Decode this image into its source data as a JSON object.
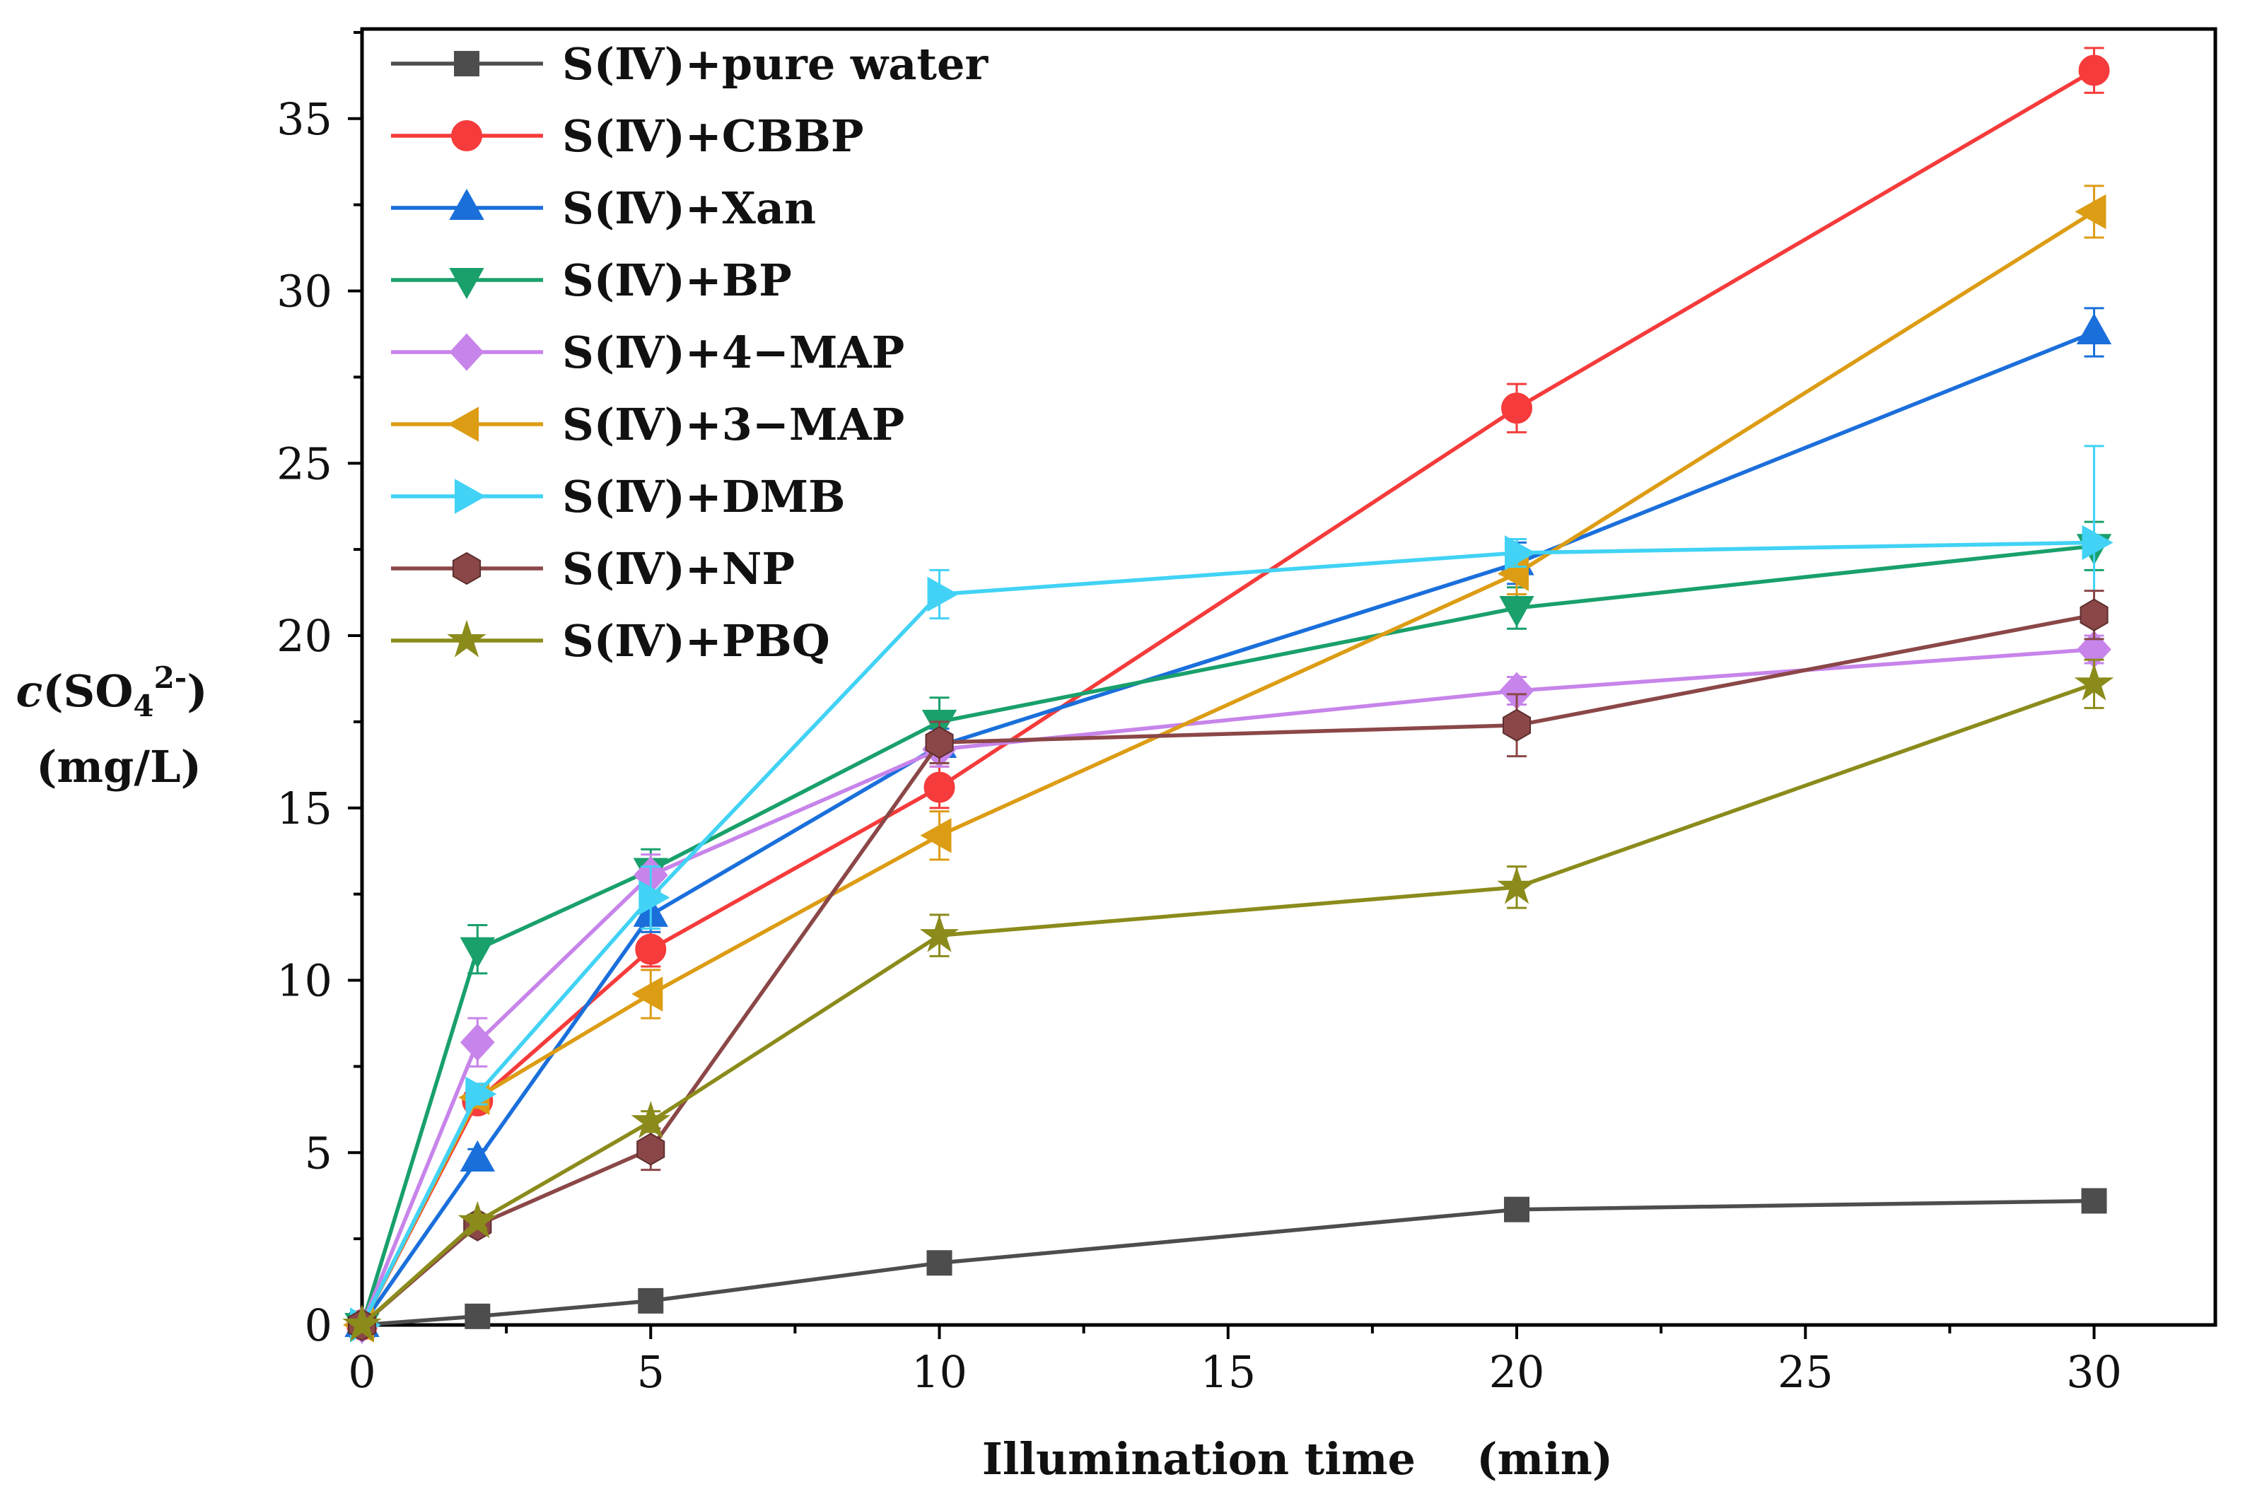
{
  "chart_data": {
    "type": "line",
    "title": "",
    "xlabel": "Illumination time    (min)",
    "ylabel": {
      "symbol": "c",
      "species": "(SO",
      "subscript": "4",
      "superscript": "2-",
      "close": ")",
      "unit": "(mg/L)"
    },
    "xlim": [
      0,
      32.1
    ],
    "ylim": [
      0,
      37.6
    ],
    "xticks": [
      0,
      5,
      10,
      15,
      20,
      25,
      30
    ],
    "yticks": [
      0,
      5,
      10,
      15,
      20,
      25,
      30,
      35
    ],
    "grid": false,
    "legend_position": "top-left",
    "x": [
      0,
      2,
      5,
      10,
      20,
      30
    ],
    "series": [
      {
        "name": "S(Ⅳ)+pure water",
        "color": "#4d4d4d",
        "marker": "square",
        "values": [
          0,
          0.25,
          0.7,
          1.8,
          3.35,
          3.6
        ],
        "errors": [
          0,
          0.1,
          0.1,
          0.15,
          0.15,
          0.15
        ]
      },
      {
        "name": "S(Ⅳ)+CBBP",
        "color": "#f53b3b",
        "marker": "circle",
        "values": [
          0,
          6.5,
          10.9,
          15.6,
          26.6,
          36.4
        ],
        "errors": [
          0,
          0.3,
          0.5,
          0.6,
          0.7,
          0.65
        ]
      },
      {
        "name": "S(Ⅳ)+Xan",
        "color": "#1a6fdb",
        "marker": "triangle-up",
        "values": [
          0,
          4.8,
          11.9,
          16.8,
          22.1,
          28.8
        ],
        "errors": [
          0,
          0.3,
          0.5,
          0.5,
          0.6,
          0.7
        ]
      },
      {
        "name": "S(Ⅳ)+BP",
        "color": "#19a06b",
        "marker": "triangle-down",
        "values": [
          0,
          10.9,
          13.2,
          17.5,
          20.8,
          22.6
        ],
        "errors": [
          0,
          0.7,
          0.6,
          0.7,
          0.6,
          0.7
        ]
      },
      {
        "name": "S(Ⅳ)+4−MAP",
        "color": "#c784ea",
        "marker": "diamond",
        "values": [
          0,
          8.2,
          13.05,
          16.7,
          18.4,
          19.6
        ],
        "errors": [
          0,
          0.7,
          0.6,
          0.5,
          0.4,
          0.4
        ]
      },
      {
        "name": "S(Ⅳ)+3−MAP",
        "color": "#dc9c14",
        "marker": "triangle-left",
        "values": [
          0,
          6.6,
          9.6,
          14.2,
          21.8,
          32.3
        ],
        "errors": [
          0,
          0.3,
          0.7,
          0.7,
          0.6,
          0.75
        ]
      },
      {
        "name": "S(Ⅳ)+DMB",
        "color": "#41d2f5",
        "marker": "triangle-right",
        "values": [
          0,
          6.7,
          12.4,
          21.2,
          22.4,
          22.7
        ],
        "errors": [
          0,
          0.3,
          0.9,
          0.7,
          0.4,
          2.8
        ]
      },
      {
        "name": "S(Ⅳ)+NP",
        "color": "#8b4747",
        "marker": "hexagon",
        "values": [
          0,
          2.9,
          5.1,
          16.9,
          17.4,
          20.6
        ],
        "errors": [
          0,
          0.2,
          0.6,
          0.6,
          0.9,
          0.7
        ]
      },
      {
        "name": "S(Ⅳ)+PBQ",
        "color": "#8b8b1c",
        "marker": "star",
        "values": [
          0,
          3.0,
          5.9,
          11.3,
          12.7,
          18.6
        ],
        "errors": [
          0,
          0.2,
          0.3,
          0.6,
          0.6,
          0.7
        ]
      }
    ]
  }
}
